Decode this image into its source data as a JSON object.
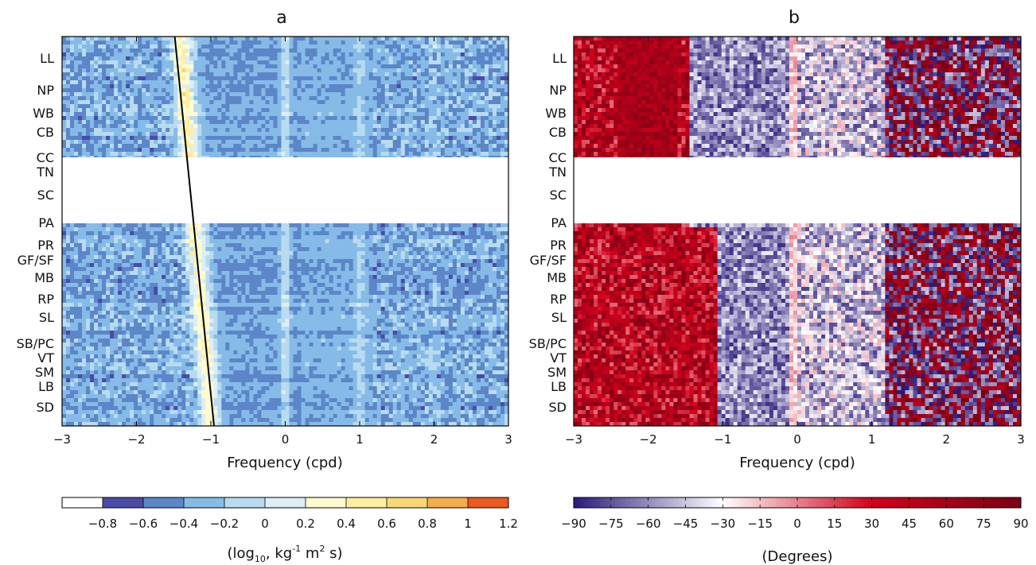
{
  "chart_data": [
    {
      "type": "heatmap",
      "panel": "a",
      "title": "a",
      "xlabel": "Frequency (cpd)",
      "xlim": [
        -3,
        3
      ],
      "x_ticks": [
        "−3",
        "−2",
        "−1",
        "0",
        "1",
        "2",
        "3"
      ],
      "x_tick_values": [
        -3,
        -2,
        -1,
        0,
        1,
        2,
        3
      ],
      "y_site_labels": [
        "LL",
        "NP",
        "WB",
        "CB",
        "CC",
        "TN",
        "SC",
        "PA",
        "PR",
        "GF/SF",
        "MB",
        "RP",
        "SL",
        "SB/PC",
        "VT",
        "SM",
        "LB",
        "SD"
      ],
      "no_data_sites": [
        "TN",
        "SC"
      ],
      "line_overlay": {
        "from_x": -1.4,
        "to_x": -1.0,
        "color": "#000000"
      },
      "colorbar": {
        "title_main": "(log",
        "title_sub": "10",
        "title_mid": ", kg",
        "title_sup": "-1",
        "title_mid2": " m",
        "title_sup2": "2",
        "title_end": " s)",
        "ticks": [
          "−0.8",
          "−0.6",
          "−0.4",
          "−0.2",
          "0",
          "0.2",
          "0.4",
          "0.6",
          "0.8",
          "1",
          "1.2"
        ],
        "range": [
          -1.0,
          1.2
        ],
        "colors": [
          "#ffffff",
          "#4b4ba6",
          "#5c86c7",
          "#86bbe8",
          "#b8dbf0",
          "#ddeef4",
          "#fffbd0",
          "#fdeea1",
          "#f9d776",
          "#f5ad4c",
          "#ea5b22"
        ]
      }
    },
    {
      "type": "heatmap",
      "panel": "b",
      "title": "b",
      "xlabel": "Frequency (cpd)",
      "xlim": [
        -3,
        3
      ],
      "x_ticks": [
        "−3",
        "−2",
        "−1",
        "0",
        "1",
        "2",
        "3"
      ],
      "x_tick_values": [
        -3,
        -2,
        -1,
        0,
        1,
        2,
        3
      ],
      "y_site_labels": [
        "LL",
        "NP",
        "WB",
        "CB",
        "CC",
        "TN",
        "SC",
        "PA",
        "PR",
        "GF/SF",
        "MB",
        "RP",
        "SL",
        "SB/PC",
        "VT",
        "SM",
        "LB",
        "SD"
      ],
      "no_data_sites": [
        "TN",
        "SC"
      ],
      "colorbar": {
        "title": "(Degrees)",
        "ticks": [
          "−90",
          "−75",
          "−60",
          "−45",
          "−30",
          "−15",
          "0",
          "15",
          "30",
          "45",
          "60",
          "75",
          "90"
        ],
        "range": [
          -90,
          90
        ],
        "colors": [
          "#2a1a7a",
          "#ffffff",
          "#d0021b",
          "#7a0015"
        ]
      }
    }
  ]
}
